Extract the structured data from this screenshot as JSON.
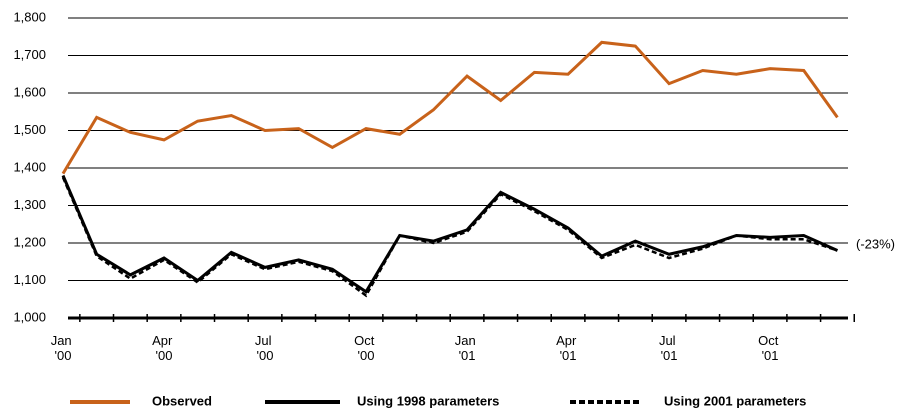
{
  "chart_data": {
    "type": "line",
    "categories": [
      "Jan '00",
      null,
      null,
      "Apr '00",
      null,
      null,
      "Jul '00",
      null,
      null,
      "Oct '00",
      null,
      null,
      "Jan '01",
      null,
      null,
      "Apr '01",
      null,
      null,
      "Jul '01",
      null,
      null,
      "Oct '01",
      null,
      null
    ],
    "series": [
      {
        "name": "Observed",
        "color": "#c8621a",
        "dash": false,
        "values": [
          1385,
          1535,
          1495,
          1475,
          1525,
          1540,
          1500,
          1505,
          1455,
          1505,
          1490,
          1555,
          1645,
          1580,
          1655,
          1650,
          1735,
          1725,
          1625,
          1660,
          1650,
          1665,
          1660,
          1535
        ]
      },
      {
        "name": "Using 1998 parameters",
        "color": "#000000",
        "dash": false,
        "values": [
          1380,
          1170,
          1115,
          1160,
          1100,
          1175,
          1135,
          1155,
          1130,
          1070,
          1220,
          1205,
          1235,
          1335,
          1290,
          1240,
          1165,
          1205,
          1170,
          1190,
          1220,
          1215,
          1220,
          1180
        ]
      },
      {
        "name": "Using 2001 parameters",
        "color": "#000000",
        "dash": true,
        "values": [
          1375,
          1165,
          1105,
          1155,
          1095,
          1170,
          1130,
          1150,
          1125,
          1060,
          1220,
          1200,
          1230,
          1330,
          1285,
          1235,
          1160,
          1195,
          1160,
          1185,
          1220,
          1210,
          1210,
          1180
        ]
      }
    ],
    "annotation": "(-23%)",
    "ylim": [
      1000,
      1800
    ],
    "yticks": [
      {
        "value": 1000,
        "label": "1,000"
      },
      {
        "value": 1100,
        "label": "1,100"
      },
      {
        "value": 1200,
        "label": "1,200"
      },
      {
        "value": 1300,
        "label": "1,300"
      },
      {
        "value": 1400,
        "label": "1,400"
      },
      {
        "value": 1500,
        "label": "1,500"
      },
      {
        "value": 1600,
        "label": "1,600"
      },
      {
        "value": 1700,
        "label": "1,700"
      },
      {
        "value": 1800,
        "label": "1,800"
      }
    ],
    "grid": true
  }
}
